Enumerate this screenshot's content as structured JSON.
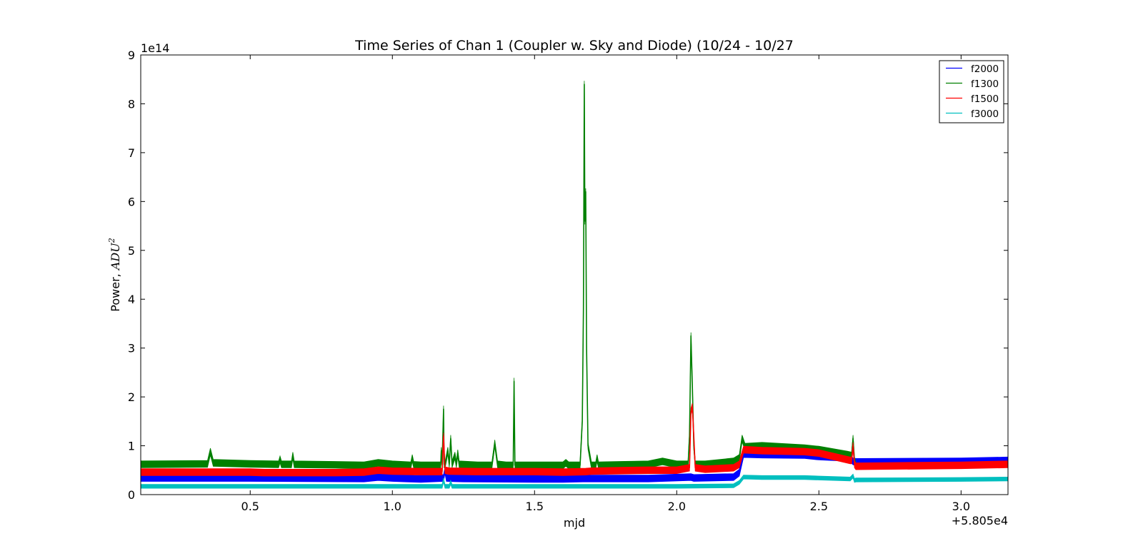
{
  "chart_data": {
    "type": "line",
    "title": "Time Series of Chan 1 (Coupler w. Sky and Diode) (10/24 - 10/27",
    "xlabel": "mjd",
    "ylabel_prefix": "Power, ",
    "ylabel_unit_base": "ADU",
    "ylabel_unit_exp": "2",
    "x_offset_label": "+5.805e4",
    "y_scale_label": "1e14",
    "xlim": [
      0.115,
      3.165
    ],
    "ylim": [
      0,
      9
    ],
    "xticks": [
      0.5,
      1.0,
      1.5,
      2.0,
      2.5,
      3.0
    ],
    "xtick_labels": [
      "0.5",
      "1.0",
      "1.5",
      "2.0",
      "2.5",
      "3.0"
    ],
    "yticks": [
      0,
      1,
      2,
      3,
      4,
      5,
      6,
      7,
      8,
      9
    ],
    "ytick_labels": [
      "0",
      "1",
      "2",
      "3",
      "4",
      "5",
      "6",
      "7",
      "8",
      "9"
    ],
    "legend_position": "top-right",
    "series": [
      {
        "name": "f2000",
        "color": "#0000ff",
        "thickness": 0.14,
        "x": [
          0.115,
          0.5,
          0.9,
          0.95,
          1.0,
          1.05,
          1.1,
          1.18,
          1.185,
          1.19,
          1.25,
          1.5,
          1.6,
          1.67,
          1.7,
          1.9,
          2.05,
          2.06,
          2.2,
          2.22,
          2.235,
          2.3,
          2.45,
          2.5,
          2.61,
          2.62,
          2.63,
          3.0,
          3.165
        ],
        "y": [
          0.34,
          0.34,
          0.33,
          0.36,
          0.34,
          0.33,
          0.32,
          0.34,
          0.5,
          0.34,
          0.33,
          0.32,
          0.32,
          0.33,
          0.33,
          0.33,
          0.36,
          0.34,
          0.36,
          0.45,
          0.83,
          0.82,
          0.81,
          0.78,
          0.75,
          0.68,
          0.67,
          0.68,
          0.7
        ]
      },
      {
        "name": "f1300",
        "color": "#008000",
        "thickness": 0.14,
        "x": [
          0.115,
          0.35,
          0.36,
          0.37,
          0.5,
          0.6,
          0.605,
          0.61,
          0.645,
          0.65,
          0.655,
          0.8,
          0.9,
          0.95,
          1.0,
          1.065,
          1.07,
          1.075,
          1.1,
          1.17,
          1.172,
          1.175,
          1.18,
          1.182,
          1.185,
          1.195,
          1.2,
          1.205,
          1.21,
          1.22,
          1.225,
          1.23,
          1.235,
          1.3,
          1.35,
          1.36,
          1.37,
          1.4,
          1.425,
          1.428,
          1.431,
          1.5,
          1.6,
          1.61,
          1.62,
          1.66,
          1.668,
          1.672,
          1.675,
          1.677,
          1.68,
          1.683,
          1.688,
          1.7,
          1.715,
          1.72,
          1.725,
          1.8,
          1.9,
          1.95,
          2.0,
          2.04,
          2.045,
          2.05,
          2.055,
          2.06,
          2.065,
          2.1,
          2.2,
          2.22,
          2.23,
          2.24,
          2.3,
          2.45,
          2.5,
          2.6,
          2.615,
          2.62,
          2.625,
          2.63
        ],
        "y": [
          0.62,
          0.63,
          0.88,
          0.65,
          0.63,
          0.62,
          0.72,
          0.62,
          0.62,
          0.8,
          0.62,
          0.61,
          0.6,
          0.65,
          0.62,
          0.6,
          0.75,
          0.61,
          0.6,
          0.6,
          0.9,
          0.62,
          1.75,
          0.62,
          0.6,
          0.9,
          0.62,
          1.15,
          0.62,
          0.8,
          0.62,
          0.85,
          0.62,
          0.6,
          0.6,
          1.05,
          0.62,
          0.6,
          0.6,
          2.32,
          0.6,
          0.6,
          0.6,
          0.65,
          0.6,
          0.6,
          1.5,
          3.8,
          8.4,
          5.6,
          6.2,
          3.0,
          1.0,
          0.6,
          0.6,
          0.75,
          0.6,
          0.61,
          0.62,
          0.68,
          0.62,
          0.62,
          1.2,
          3.25,
          2.2,
          1.0,
          0.62,
          0.62,
          0.68,
          0.75,
          1.15,
          0.98,
          1.0,
          0.95,
          0.92,
          0.82,
          0.8,
          1.15,
          0.7,
          0.58
        ]
      },
      {
        "name": "f1500",
        "color": "#ff0000",
        "thickness": 0.14,
        "x": [
          0.115,
          0.5,
          0.55,
          0.8,
          0.9,
          0.95,
          1.0,
          1.1,
          1.175,
          1.18,
          1.185,
          1.2,
          1.3,
          1.5,
          1.6,
          1.68,
          1.7,
          1.9,
          2.0,
          2.045,
          2.05,
          2.055,
          2.06,
          2.065,
          2.1,
          2.2,
          2.22,
          2.235,
          2.3,
          2.45,
          2.5,
          2.61,
          2.615,
          2.62,
          2.625,
          2.63,
          3.0,
          3.165
        ],
        "y": [
          0.46,
          0.46,
          0.45,
          0.45,
          0.46,
          0.5,
          0.48,
          0.47,
          0.47,
          1.2,
          0.5,
          0.48,
          0.47,
          0.47,
          0.46,
          0.47,
          0.48,
          0.5,
          0.5,
          0.55,
          1.7,
          1.8,
          1.2,
          0.55,
          0.52,
          0.55,
          0.62,
          0.92,
          0.9,
          0.88,
          0.85,
          0.7,
          0.7,
          1.0,
          0.62,
          0.58,
          0.6,
          0.62
        ]
      },
      {
        "name": "f3000",
        "color": "#00bfbf",
        "thickness": 0.08,
        "x": [
          0.115,
          0.5,
          0.8,
          0.9,
          1.0,
          1.1,
          1.175,
          1.18,
          1.185,
          1.2,
          1.205,
          1.21,
          1.3,
          1.5,
          1.7,
          1.9,
          2.0,
          2.2,
          2.22,
          2.235,
          2.3,
          2.45,
          2.5,
          2.61,
          2.62,
          2.625,
          2.63,
          3.0,
          3.165
        ],
        "y": [
          0.17,
          0.17,
          0.17,
          0.17,
          0.17,
          0.17,
          0.17,
          0.3,
          0.17,
          0.17,
          0.25,
          0.17,
          0.17,
          0.17,
          0.17,
          0.17,
          0.17,
          0.18,
          0.25,
          0.36,
          0.35,
          0.35,
          0.34,
          0.32,
          0.38,
          0.29,
          0.3,
          0.31,
          0.32
        ]
      }
    ]
  }
}
